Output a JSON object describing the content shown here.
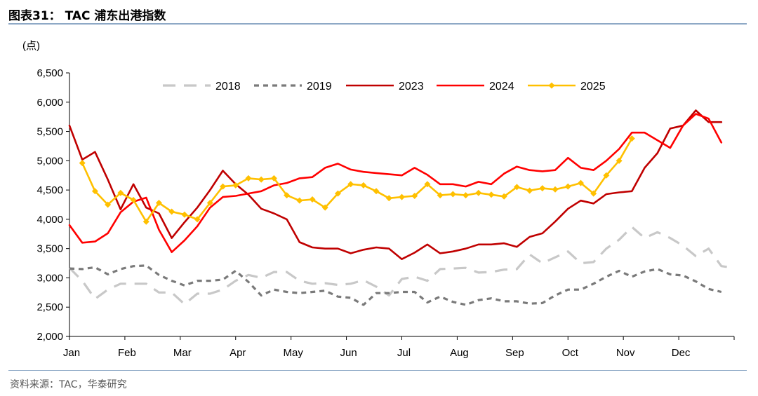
{
  "header": {
    "title": "图表31：   TAC 浦东出港指数"
  },
  "footer": {
    "source": "资料来源：TAC，华泰研究"
  },
  "chart_data": {
    "type": "line",
    "title": "TAC 浦东出港指数",
    "ylabel": "(点)",
    "xlabel": "",
    "ylim": [
      2000,
      6500
    ],
    "yticks": [
      "2,000",
      "2,500",
      "3,000",
      "3,500",
      "4,000",
      "4,500",
      "5,000",
      "5,500",
      "6,000",
      "6,500"
    ],
    "ytick_values": [
      2000,
      2500,
      3000,
      3500,
      4000,
      4500,
      5000,
      5500,
      6000,
      6500
    ],
    "categories": [
      "Jan",
      "Feb",
      "Mar",
      "Apr",
      "May",
      "Jun",
      "Jul",
      "Aug",
      "Sep",
      "Oct",
      "Nov",
      "Dec"
    ],
    "x_unit": "week index (0 = start of Jan, 52 = end of Dec)",
    "grid": false,
    "legend_position": "top",
    "series": [
      {
        "name": "2018",
        "color": "#c8c8c8",
        "style": "dashed",
        "points": [
          [
            0,
            3170
          ],
          [
            1,
            2950
          ],
          [
            2,
            2640
          ],
          [
            3,
            2800
          ],
          [
            4,
            2900
          ],
          [
            5,
            2900
          ],
          [
            6,
            2900
          ],
          [
            7,
            2750
          ],
          [
            8,
            2750
          ],
          [
            9,
            2550
          ],
          [
            10,
            2730
          ],
          [
            11,
            2730
          ],
          [
            12,
            2800
          ],
          [
            13,
            2950
          ],
          [
            14,
            3050
          ],
          [
            15,
            3000
          ],
          [
            16,
            3100
          ],
          [
            17,
            3100
          ],
          [
            18,
            2950
          ],
          [
            19,
            2900
          ],
          [
            20,
            2910
          ],
          [
            21,
            2880
          ],
          [
            22,
            2900
          ],
          [
            23,
            2960
          ],
          [
            24,
            2850
          ],
          [
            25,
            2700
          ],
          [
            26,
            2980
          ],
          [
            27,
            3020
          ],
          [
            28,
            2950
          ],
          [
            29,
            3150
          ],
          [
            30,
            3160
          ],
          [
            31,
            3170
          ],
          [
            32,
            3090
          ],
          [
            33,
            3100
          ],
          [
            34,
            3140
          ],
          [
            35,
            3150
          ],
          [
            36,
            3400
          ],
          [
            37,
            3250
          ],
          [
            38,
            3350
          ],
          [
            39,
            3450
          ],
          [
            40,
            3250
          ],
          [
            41,
            3270
          ],
          [
            42,
            3500
          ],
          [
            43,
            3650
          ],
          [
            44,
            3870
          ],
          [
            45,
            3680
          ],
          [
            46,
            3780
          ],
          [
            47,
            3680
          ],
          [
            48,
            3550
          ],
          [
            49,
            3370
          ],
          [
            50,
            3500
          ],
          [
            51,
            3200
          ],
          [
            52,
            3170
          ]
        ]
      },
      {
        "name": "2019",
        "color": "#7a7a7a",
        "style": "dotted",
        "points": [
          [
            0,
            3160
          ],
          [
            1,
            3150
          ],
          [
            2,
            3180
          ],
          [
            3,
            3060
          ],
          [
            4,
            3150
          ],
          [
            5,
            3200
          ],
          [
            6,
            3210
          ],
          [
            7,
            3050
          ],
          [
            8,
            2950
          ],
          [
            9,
            2870
          ],
          [
            10,
            2950
          ],
          [
            11,
            2950
          ],
          [
            12,
            2970
          ],
          [
            13,
            3120
          ],
          [
            14,
            2930
          ],
          [
            15,
            2700
          ],
          [
            16,
            2800
          ],
          [
            17,
            2760
          ],
          [
            18,
            2740
          ],
          [
            19,
            2760
          ],
          [
            20,
            2780
          ],
          [
            21,
            2680
          ],
          [
            22,
            2660
          ],
          [
            23,
            2540
          ],
          [
            24,
            2740
          ],
          [
            25,
            2740
          ],
          [
            26,
            2760
          ],
          [
            27,
            2760
          ],
          [
            28,
            2580
          ],
          [
            29,
            2680
          ],
          [
            30,
            2590
          ],
          [
            31,
            2540
          ],
          [
            32,
            2620
          ],
          [
            33,
            2650
          ],
          [
            34,
            2600
          ],
          [
            35,
            2600
          ],
          [
            36,
            2560
          ],
          [
            37,
            2570
          ],
          [
            38,
            2700
          ],
          [
            39,
            2800
          ],
          [
            40,
            2800
          ],
          [
            41,
            2900
          ],
          [
            42,
            3020
          ],
          [
            43,
            3120
          ],
          [
            44,
            3020
          ],
          [
            45,
            3110
          ],
          [
            46,
            3150
          ],
          [
            47,
            3060
          ],
          [
            48,
            3040
          ],
          [
            49,
            2940
          ],
          [
            50,
            2810
          ],
          [
            51,
            2760
          ]
        ]
      },
      {
        "name": "2023",
        "color": "#c00000",
        "style": "solid",
        "points": [
          [
            0,
            5600
          ],
          [
            1,
            5020
          ],
          [
            2,
            5150
          ],
          [
            3,
            4680
          ],
          [
            4,
            4170
          ],
          [
            5,
            4600
          ],
          [
            6,
            4200
          ],
          [
            7,
            4100
          ],
          [
            8,
            3680
          ],
          [
            9,
            3950
          ],
          [
            10,
            4200
          ],
          [
            11,
            4500
          ],
          [
            12,
            4830
          ],
          [
            13,
            4600
          ],
          [
            14,
            4420
          ],
          [
            15,
            4180
          ],
          [
            16,
            4100
          ],
          [
            17,
            4000
          ],
          [
            18,
            3610
          ],
          [
            19,
            3520
          ],
          [
            20,
            3500
          ],
          [
            21,
            3500
          ],
          [
            22,
            3420
          ],
          [
            23,
            3480
          ],
          [
            24,
            3520
          ],
          [
            25,
            3500
          ],
          [
            26,
            3320
          ],
          [
            27,
            3430
          ],
          [
            28,
            3570
          ],
          [
            29,
            3420
          ],
          [
            30,
            3450
          ],
          [
            31,
            3500
          ],
          [
            32,
            3570
          ],
          [
            33,
            3570
          ],
          [
            34,
            3590
          ],
          [
            35,
            3530
          ],
          [
            36,
            3700
          ],
          [
            37,
            3760
          ],
          [
            38,
            3960
          ],
          [
            39,
            4180
          ],
          [
            40,
            4320
          ],
          [
            41,
            4270
          ],
          [
            42,
            4430
          ],
          [
            43,
            4460
          ],
          [
            44,
            4480
          ],
          [
            45,
            4880
          ],
          [
            46,
            5130
          ],
          [
            47,
            5550
          ],
          [
            48,
            5600
          ],
          [
            49,
            5860
          ],
          [
            50,
            5660
          ],
          [
            51,
            5660
          ]
        ]
      },
      {
        "name": "2024",
        "color": "#ff0000",
        "style": "solid",
        "points": [
          [
            0,
            3900
          ],
          [
            1,
            3600
          ],
          [
            2,
            3620
          ],
          [
            3,
            3760
          ],
          [
            4,
            4120
          ],
          [
            5,
            4300
          ],
          [
            6,
            4370
          ],
          [
            7,
            3820
          ],
          [
            8,
            3440
          ],
          [
            9,
            3640
          ],
          [
            10,
            3880
          ],
          [
            11,
            4200
          ],
          [
            12,
            4380
          ],
          [
            13,
            4400
          ],
          [
            14,
            4440
          ],
          [
            15,
            4480
          ],
          [
            16,
            4580
          ],
          [
            17,
            4620
          ],
          [
            18,
            4700
          ],
          [
            19,
            4720
          ],
          [
            20,
            4880
          ],
          [
            21,
            4950
          ],
          [
            22,
            4850
          ],
          [
            23,
            4810
          ],
          [
            24,
            4790
          ],
          [
            25,
            4770
          ],
          [
            26,
            4750
          ],
          [
            27,
            4880
          ],
          [
            28,
            4760
          ],
          [
            29,
            4600
          ],
          [
            30,
            4600
          ],
          [
            31,
            4560
          ],
          [
            32,
            4640
          ],
          [
            33,
            4600
          ],
          [
            34,
            4780
          ],
          [
            35,
            4900
          ],
          [
            36,
            4840
          ],
          [
            37,
            4820
          ],
          [
            38,
            4840
          ],
          [
            39,
            5050
          ],
          [
            40,
            4880
          ],
          [
            41,
            4840
          ],
          [
            42,
            5000
          ],
          [
            43,
            5200
          ],
          [
            44,
            5480
          ],
          [
            45,
            5480
          ],
          [
            46,
            5350
          ],
          [
            47,
            5220
          ],
          [
            48,
            5600
          ],
          [
            49,
            5800
          ],
          [
            50,
            5720
          ],
          [
            51,
            5310
          ]
        ]
      },
      {
        "name": "2025",
        "color": "#ffc000",
        "style": "solid",
        "marker": "diamond",
        "points": [
          [
            1,
            4960
          ],
          [
            2,
            4480
          ],
          [
            3,
            4250
          ],
          [
            4,
            4450
          ],
          [
            5,
            4330
          ],
          [
            6,
            3960
          ],
          [
            7,
            4280
          ],
          [
            8,
            4130
          ],
          [
            9,
            4080
          ],
          [
            10,
            4000
          ],
          [
            11,
            4280
          ],
          [
            12,
            4560
          ],
          [
            13,
            4580
          ],
          [
            14,
            4700
          ],
          [
            15,
            4680
          ],
          [
            16,
            4700
          ],
          [
            17,
            4410
          ],
          [
            18,
            4320
          ],
          [
            19,
            4340
          ],
          [
            20,
            4200
          ],
          [
            21,
            4440
          ],
          [
            22,
            4600
          ],
          [
            23,
            4580
          ],
          [
            24,
            4480
          ],
          [
            25,
            4360
          ],
          [
            26,
            4380
          ],
          [
            27,
            4400
          ],
          [
            28,
            4600
          ],
          [
            29,
            4410
          ],
          [
            30,
            4430
          ],
          [
            31,
            4410
          ],
          [
            32,
            4450
          ],
          [
            33,
            4420
          ],
          [
            34,
            4390
          ],
          [
            35,
            4550
          ],
          [
            36,
            4490
          ],
          [
            37,
            4530
          ],
          [
            38,
            4510
          ],
          [
            39,
            4560
          ],
          [
            40,
            4620
          ],
          [
            41,
            4440
          ],
          [
            42,
            4750
          ],
          [
            43,
            5000
          ],
          [
            44,
            5380
          ]
        ]
      }
    ]
  }
}
